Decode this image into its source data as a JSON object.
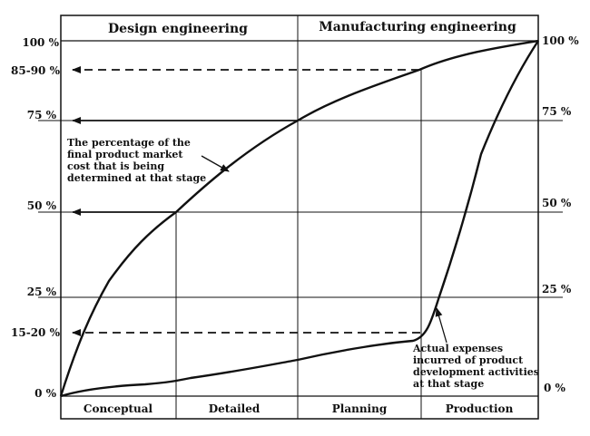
{
  "header": {
    "left": "Design engineering",
    "right": "Manufacturing engineering"
  },
  "y_axis_left": {
    "label_100": "100 %",
    "label_85_90": "85-90 %",
    "label_75": "75 %",
    "label_50": "50 %",
    "label_25": "25 %",
    "label_15_20": "15-20 %",
    "label_0": "0 %"
  },
  "y_axis_right": {
    "label_100": "100 %",
    "label_75": "75 %",
    "label_50": "50 %",
    "label_25": "25 %",
    "label_0": "0 %"
  },
  "stages": [
    "Conceptual",
    "Detailed",
    "Planning",
    "Production"
  ],
  "annotation_upper": [
    "The percentage of the",
    "final product market",
    "cost that is being",
    "determined at that stage"
  ],
  "annotation_lower": [
    "Actual expenses",
    "incurred of product",
    "development activities",
    "at that stage"
  ],
  "colors": {
    "ink": "#111111",
    "background": "#ffffff"
  }
}
